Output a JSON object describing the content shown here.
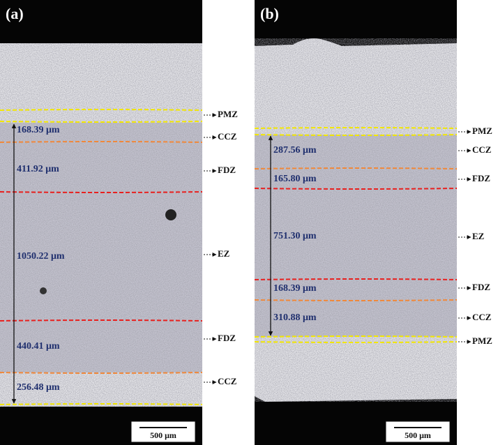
{
  "panels": [
    {
      "label": "(a)",
      "measurements": [
        "168.39 μm",
        "411.92 μm",
        "1050.22 μm",
        "440.41 μm",
        "256.48 μm"
      ],
      "zones": [
        "PMZ",
        "CCZ",
        "FDZ",
        "EZ",
        "FDZ",
        "CCZ"
      ],
      "scale_bar": "500 μm"
    },
    {
      "label": "(b)",
      "measurements": [
        "287.56 μm",
        "165.80 μm",
        "751.30 μm",
        "168.39 μm",
        "310.88 μm"
      ],
      "zones": [
        "PMZ",
        "CCZ",
        "FDZ",
        "EZ",
        "FDZ",
        "CCZ",
        "PMZ"
      ],
      "scale_bar": "500 μm"
    }
  ]
}
